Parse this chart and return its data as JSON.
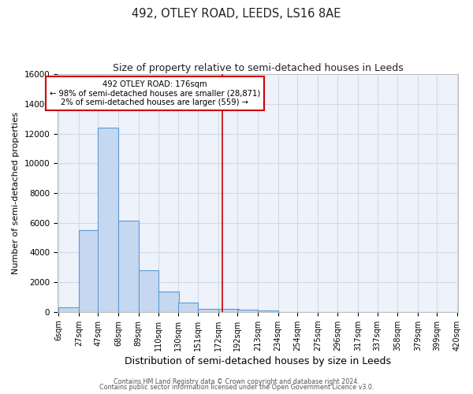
{
  "title": "492, OTLEY ROAD, LEEDS, LS16 8AE",
  "subtitle": "Size of property relative to semi-detached houses in Leeds",
  "bar_left_edges": [
    6,
    27,
    47,
    68,
    89,
    110,
    130,
    151,
    172,
    192,
    213,
    234,
    254,
    275,
    296,
    317,
    337,
    358,
    379,
    399
  ],
  "bar_heights": [
    300,
    5500,
    12400,
    6150,
    2800,
    1350,
    620,
    200,
    200,
    150,
    100,
    0,
    0,
    0,
    0,
    0,
    0,
    0,
    0,
    0
  ],
  "bin_width": 21,
  "bar_color": "#c5d8f0",
  "bar_edge_color": "#5b9bd5",
  "property_value": 176,
  "vline_color": "#cc0000",
  "annotation_text_line1": "492 OTLEY ROAD: 176sqm",
  "annotation_text_line2": "← 98% of semi-detached houses are smaller (28,871)",
  "annotation_text_line3": "2% of semi-detached houses are larger (559) →",
  "annotation_box_edge_color": "#cc0000",
  "xlabel": "Distribution of semi-detached houses by size in Leeds",
  "ylabel": "Number of semi-detached properties",
  "ylim": [
    0,
    16000
  ],
  "yticks": [
    0,
    2000,
    4000,
    6000,
    8000,
    10000,
    12000,
    14000,
    16000
  ],
  "xtick_labels": [
    "6sqm",
    "27sqm",
    "47sqm",
    "68sqm",
    "89sqm",
    "110sqm",
    "130sqm",
    "151sqm",
    "172sqm",
    "192sqm",
    "213sqm",
    "234sqm",
    "254sqm",
    "275sqm",
    "296sqm",
    "317sqm",
    "337sqm",
    "358sqm",
    "379sqm",
    "399sqm",
    "420sqm"
  ],
  "footer_line1": "Contains HM Land Registry data © Crown copyright and database right 2024.",
  "footer_line2": "Contains public sector information licensed under the Open Government Licence v3.0.",
  "plot_bg_color": "#eef2fa",
  "fig_bg_color": "#ffffff",
  "grid_color": "#d0d8e8",
  "title_fontsize": 10.5,
  "subtitle_fontsize": 9,
  "xlabel_fontsize": 9,
  "ylabel_fontsize": 8,
  "tick_fontsize": 7,
  "footer_fontsize": 5.8
}
